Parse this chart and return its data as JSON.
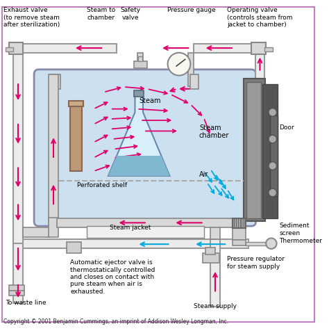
{
  "copyright": "Copyright © 2001 Benjamin Cummings, an imprint of Addison Wesley Longman, Inc.",
  "bg_color": "#ffffff",
  "chamber_color": "#cce0f0",
  "pipe_color": "#e0e0e0",
  "door_color": "#888888",
  "steam_arrow_color": "#e0006a",
  "air_arrow_color": "#00aadd",
  "labels": {
    "exhaust_valve": "Exhaust valve\n(to remove steam\nafter sterilization)",
    "steam_to_chamber": "Steam to\nchamber",
    "safety_valve": "Safety\nvalve",
    "pressure_gauge": "Pressure gauge",
    "operating_valve": "Operating valve\n(controls steam from\njacket to chamber)",
    "steam": "Steam",
    "steam_chamber": "Steam\nchamber",
    "air": "Air",
    "perforated_shelf": "Perforated shelf",
    "steam_jacket": "Steam jacket",
    "door": "Door",
    "sediment_screen": "Sediment\nscreen",
    "thermometer": "Thermometer",
    "ejector_valve": "Automatic ejector valve is\nthermostatically controlled\nand closes on contact with\npure steam when air is\nexhausted.",
    "pressure_regulator": "Pressure regulator\nfor steam supply",
    "steam_supply": "Steam supply",
    "waste_line": "To waste line"
  }
}
